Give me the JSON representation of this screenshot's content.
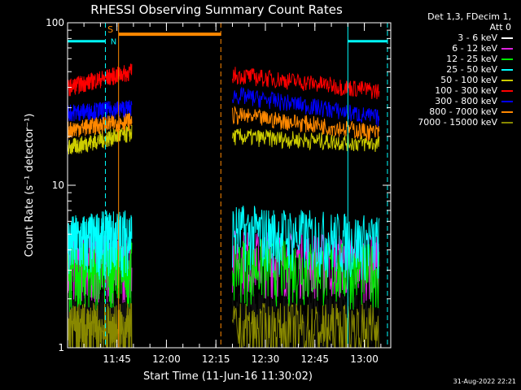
{
  "chart_data": {
    "type": "line",
    "title": "RHESSI Observing Summary Count Rates",
    "xlabel": "Start Time (11-Jun-16 11:30:02)",
    "ylabel": "Count Rate (s⁻¹ detector⁻¹)",
    "y_scale": "log",
    "ylim": [
      1,
      100
    ],
    "yticks": [
      {
        "value": 1,
        "label": "1"
      },
      {
        "value": 10,
        "label": "10"
      },
      {
        "value": 100,
        "label": "100"
      }
    ],
    "xlim": [
      "11:30:02",
      "13:08:00"
    ],
    "xticks": [
      "11:45",
      "12:00",
      "12:15",
      "12:30",
      "12:45",
      "13:00"
    ],
    "legend": {
      "placement": "right",
      "header": [
        "Det 1,3, FDecim 1,",
        "Att 0"
      ]
    },
    "series": [
      {
        "name": "3 - 6 keV",
        "color": "#000000",
        "segments": [
          [
            "11:30:02",
            1.6,
            "11:49:30",
            1.6
          ],
          [
            "12:20:00",
            1.6,
            "13:04:30",
            1.6
          ]
        ]
      },
      {
        "name": "6 - 12 keV",
        "color": "#dd22dd",
        "segments": [
          [
            "11:30:02",
            3.4,
            "11:49:30",
            3.4
          ],
          [
            "12:20:00",
            3.7,
            "13:04:30",
            3.4
          ]
        ]
      },
      {
        "name": "12 - 25 keV",
        "color": "#00ee00",
        "segments": [
          [
            "11:30:02",
            3.0,
            "11:49:30",
            3.2
          ],
          [
            "12:20:00",
            3.3,
            "13:04:30",
            3.0
          ]
        ]
      },
      {
        "name": "25 - 50 keV",
        "color": "#00ffff",
        "segments": [
          [
            "11:30:02",
            4.5,
            "11:49:30",
            5.0
          ],
          [
            "12:20:00",
            5.3,
            "13:04:30",
            4.5
          ]
        ]
      },
      {
        "name": "50 - 100 keV",
        "color": "#cccc00",
        "segments": [
          [
            "11:30:02",
            17,
            "11:49:30",
            21
          ],
          [
            "12:20:00",
            20,
            "13:04:30",
            18
          ]
        ]
      },
      {
        "name": "100 - 300 keV",
        "color": "#ff0000",
        "segments": [
          [
            "11:30:02",
            40,
            "11:49:30",
            50
          ],
          [
            "12:20:00",
            48,
            "13:04:30",
            38
          ]
        ]
      },
      {
        "name": "300 - 800 keV",
        "color": "#0000ff",
        "segments": [
          [
            "11:30:02",
            28,
            "11:49:30",
            30
          ],
          [
            "12:20:00",
            36,
            "13:04:30",
            26
          ]
        ]
      },
      {
        "name": "800 - 7000 keV",
        "color": "#ff8800",
        "segments": [
          [
            "11:30:02",
            22,
            "11:49:30",
            25
          ],
          [
            "12:20:00",
            27,
            "13:04:30",
            21
          ]
        ]
      },
      {
        "name": "7000 - 15000 keV",
        "color": "#888800",
        "segments": [
          [
            "11:30:02",
            1.3,
            "11:49:30",
            1.3
          ],
          [
            "12:20:00",
            1.3,
            "13:04:30",
            1.3
          ]
        ]
      }
    ],
    "annotations": {
      "night_bars": {
        "color": "#00ffff",
        "y": 77,
        "label": "N",
        "ranges": [
          [
            "11:30:02",
            "11:41:30"
          ],
          [
            "12:55:00",
            "13:07:00"
          ]
        ]
      },
      "saa_bar": {
        "color": "#ff8800",
        "y": 85,
        "label": "S",
        "range": [
          "11:45:30",
          "12:16:30"
        ]
      },
      "vlines": [
        {
          "time": "11:41:30",
          "color": "#00ffff",
          "style": "dashed"
        },
        {
          "time": "11:45:30",
          "color": "#ff8800",
          "style": "solid"
        },
        {
          "time": "12:16:30",
          "color": "#ff8800",
          "style": "dashed"
        },
        {
          "time": "12:55:00",
          "color": "#00ffff",
          "style": "solid"
        },
        {
          "time": "13:07:00",
          "color": "#00ffff",
          "style": "dashed"
        }
      ]
    }
  },
  "footer": {
    "timestamp": "31-Aug-2022 22:21"
  }
}
